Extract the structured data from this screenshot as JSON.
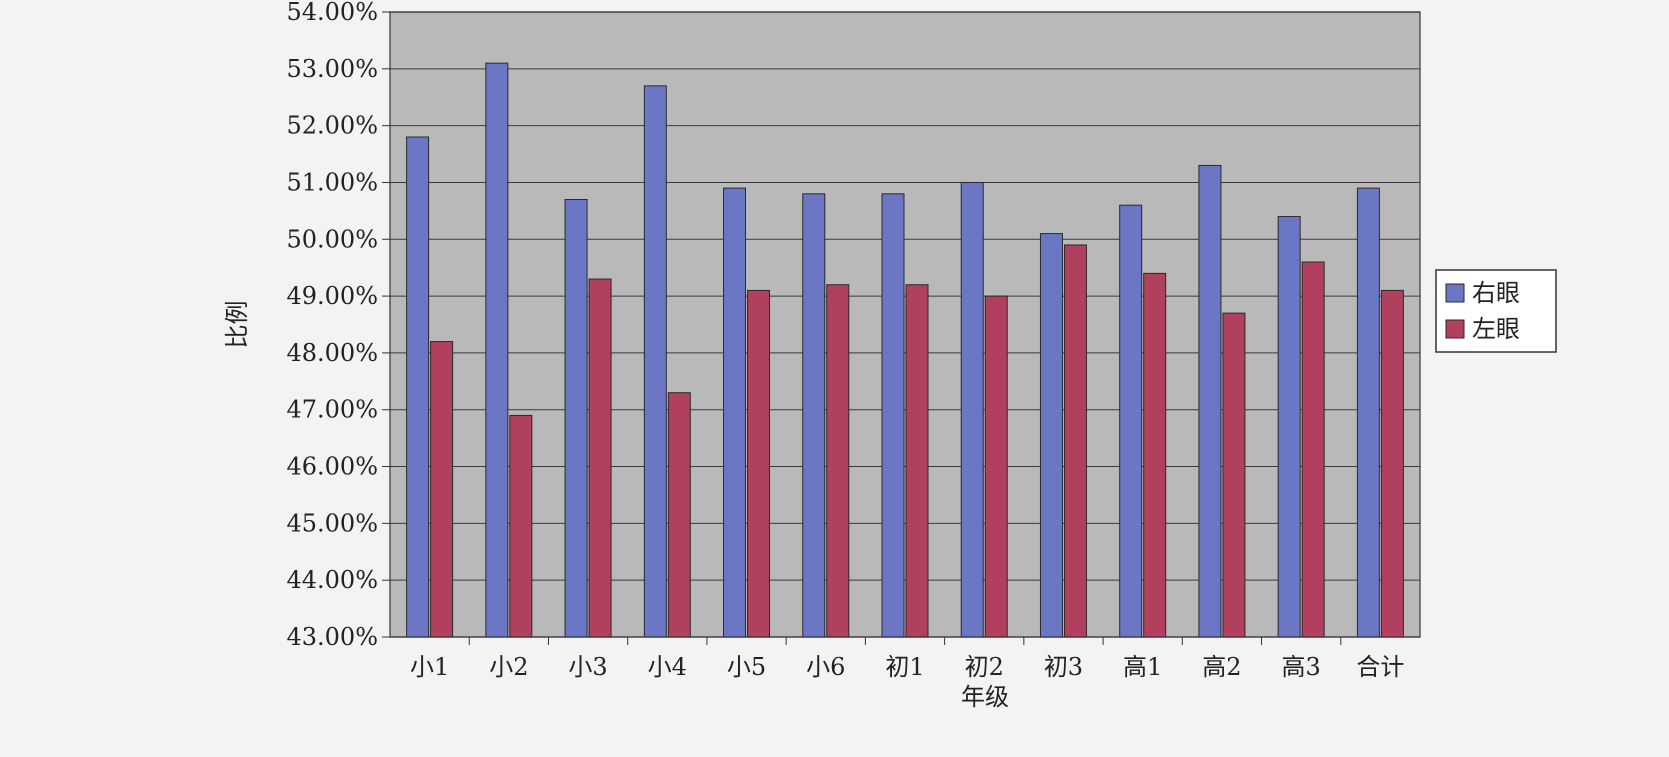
{
  "chart_data": {
    "type": "bar",
    "xlabel": "年级",
    "ylabel": "比例",
    "categories": [
      "小1",
      "小2",
      "小3",
      "小4",
      "小5",
      "小6",
      "初1",
      "初2",
      "初3",
      "高1",
      "高2",
      "高3",
      "合计"
    ],
    "series": [
      {
        "name": "右眼",
        "color": "#6b77c4",
        "values": [
          51.8,
          53.1,
          50.7,
          52.7,
          50.9,
          50.8,
          50.8,
          51.0,
          50.1,
          50.6,
          51.3,
          50.4,
          50.9
        ]
      },
      {
        "name": "左眼",
        "color": "#b0405e",
        "values": [
          48.2,
          46.9,
          49.3,
          47.3,
          49.1,
          49.2,
          49.2,
          49.0,
          49.9,
          49.4,
          48.7,
          49.6,
          49.1
        ]
      }
    ],
    "ylim": [
      43,
      54
    ],
    "yticks": [
      "43.00%",
      "44.00%",
      "45.00%",
      "46.00%",
      "47.00%",
      "48.00%",
      "49.00%",
      "50.00%",
      "51.00%",
      "52.00%",
      "53.00%",
      "54.00%"
    ],
    "grid": true,
    "legend": "right"
  }
}
